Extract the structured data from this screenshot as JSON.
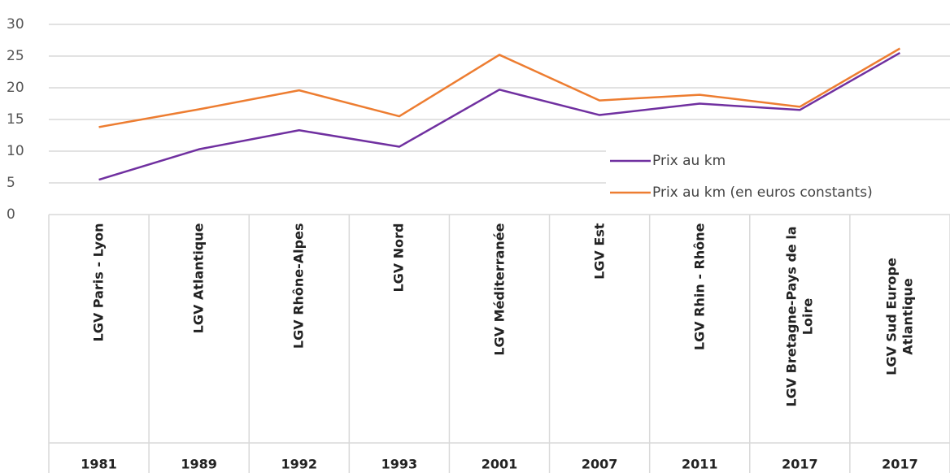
{
  "chart_data": {
    "type": "line",
    "categories": [
      "LGV Paris - Lyon",
      "LGV Atlantique",
      "LGV Rhône-Alpes",
      "LGV Nord",
      "LGV Méditerranée",
      "LGV Est",
      "LGV Rhin - Rhône",
      "LGV Bretagne-Pays de la Loire",
      "LGV Sud Europe Atlantique"
    ],
    "years": [
      "1981",
      "1989",
      "1992",
      "1993",
      "2001",
      "2007",
      "2011",
      "2017",
      "2017"
    ],
    "series": [
      {
        "name": "Prix au km",
        "color": "#7030a0",
        "values": [
          5.5,
          10.3,
          13.3,
          10.7,
          19.7,
          15.7,
          17.5,
          16.5,
          25.5
        ]
      },
      {
        "name": "Prix au km (en euros constants)",
        "color": "#ed7d31",
        "values": [
          13.8,
          16.6,
          19.6,
          15.5,
          25.2,
          18,
          18.9,
          17,
          26.2
        ]
      }
    ],
    "ylim": [
      0,
      30
    ],
    "yticks": [
      0,
      5,
      10,
      15,
      20,
      25,
      30
    ],
    "grid": true,
    "legend_position": "right"
  }
}
